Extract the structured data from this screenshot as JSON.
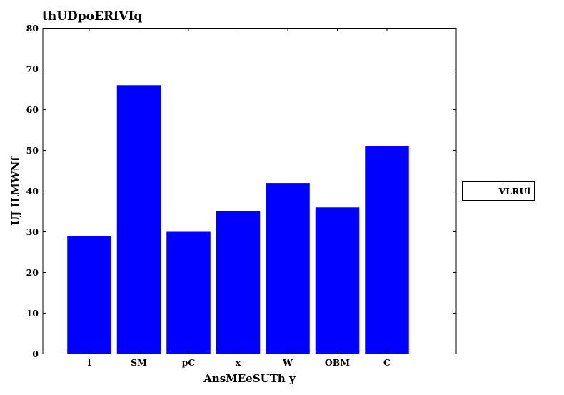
{
  "chart_data": {
    "type": "bar",
    "title": "thUDpoERfVIq",
    "xlabel": "AnsMEeSUTh y",
    "ylabel": "UJ ILMWNf",
    "categories": [
      "l",
      "SM",
      "pC",
      "x",
      "W",
      "OBM",
      "C"
    ],
    "series": [
      {
        "name": "VLRUl",
        "values": [
          29,
          66,
          30,
          35,
          42,
          36,
          51
        ],
        "color": "#0000ff"
      }
    ],
    "ylim": [
      0,
      80
    ],
    "yticks": [
      0,
      10,
      20,
      30,
      40,
      50,
      60,
      70,
      80
    ],
    "grid": false,
    "legend_position": "right"
  }
}
